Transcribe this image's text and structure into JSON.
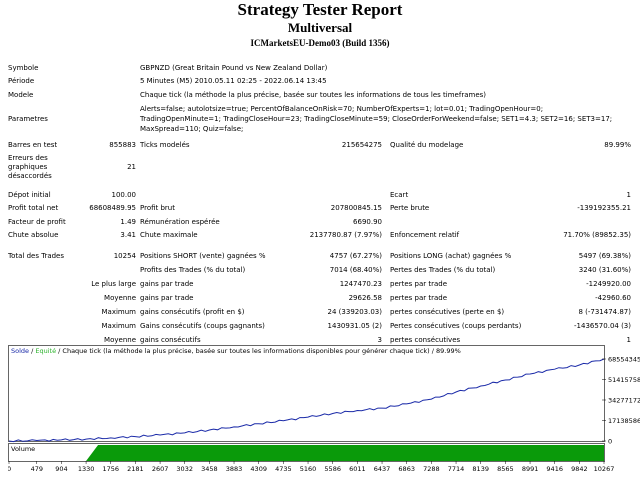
{
  "title": "Strategy Tester Report",
  "subtitle": "Multiversal",
  "server": "ICMarketsEU-Demo03 (Build 1356)",
  "info": {
    "symbol_label": "Symbole",
    "symbol_value": "GBPNZD (Great Britain Pound vs New Zealand Dollar)",
    "period_label": "Période",
    "period_value": "5 Minutes (M5) 2010.05.11 02:25 - 2022.06.14 13:45",
    "model_label": "Modele",
    "model_value": "Chaque tick (la méthode la plus précise, basée sur toutes les informations de tous les timeframes)",
    "params_label": "Parametres",
    "params_line1": "Alerts=false; autolotsize=true; PercentOfBalanceOnRisk=70; NumberOfExperts=1; lot=0.01; TradingOpenHour=0;",
    "params_line2": "TradingOpenMinute=1; TradingCloseHour=23; TradingCloseMinute=59; CloseOrderForWeekend=false; SET1=4.3; SET2=16; SET3=17;",
    "params_line3": "MaxSpread=110; Quiz=false;"
  },
  "stats": {
    "bars_label": "Barres en test",
    "bars_value": "855883",
    "ticks_label": "Ticks modelés",
    "ticks_value": "215654275",
    "quality_label": "Qualité du modelage",
    "quality_value": "89.99%",
    "errors_label_1": "Erreurs des",
    "errors_label_2": "graphiques",
    "errors_label_3": "désaccordés",
    "errors_value": "21",
    "deposit_label": "Dépot initial",
    "deposit_value": "100.00",
    "spread_label": "Ecart",
    "spread_value": "1",
    "net_label": "Profit total net",
    "net_value": "68608489.95",
    "gross_profit_label": "Profit brut",
    "gross_profit_value": "207800845.15",
    "gross_loss_label": "Perte brute",
    "gross_loss_value": "-139192355.21",
    "pf_label": "Facteur de profit",
    "pf_value": "1.49",
    "expected_label": "Rémunération espérée",
    "expected_value": "6690.90",
    "abs_dd_label": "Chute absolue",
    "abs_dd_value": "3.41",
    "max_dd_label": "Chute maximale",
    "max_dd_value": "2137780.87 (7.97%)",
    "rel_dd_label": "Enfoncement relatif",
    "rel_dd_value": "71.70% (89852.35)",
    "trades_label": "Total des Trades",
    "trades_value": "10254",
    "short_label": "Positions SHORT (vente) gagnées %",
    "short_value": "4757 (67.27%)",
    "long_label": "Positions LONG (achat) gagnées %",
    "long_value": "5497 (69.38%)",
    "profit_trades_label": "Profits des Trades (% du total)",
    "profit_trades_value": "7014 (68.40%)",
    "loss_trades_label": "Pertes des Trades (% du total)",
    "loss_trades_value": "3240 (31.60%)",
    "largest_label": "Le plus large",
    "largest_profit_label": "gains par trade",
    "largest_profit_value": "1247470.23",
    "largest_loss_label": "pertes par trade",
    "largest_loss_value": "-1249920.00",
    "average_label": "Moyenne",
    "avg_profit_label": "gains par trade",
    "avg_profit_value": "29626.58",
    "avg_loss_label": "pertes par trade",
    "avg_loss_value": "-42960.60",
    "maximum_label": "Maximum",
    "max_cons_wins_label": "gains consécutifs (profit en $)",
    "max_cons_wins_value": "24 (339203.03)",
    "max_cons_losses_label": "pertes consécutives (perte en $)",
    "max_cons_losses_value": "8 (-731474.87)",
    "maximum2_label": "Maximum",
    "max_cons_profit_label": "Gains consécutifs (coups gagnants)",
    "max_cons_profit_value": "1430931.05 (2)",
    "max_cons_loss_label": "Pertes consécutives (coups perdants)",
    "max_cons_loss_value": "-1436570.04 (3)",
    "average2_label": "Moyenne",
    "avg_cons_wins_label": "gains consécutifs",
    "avg_cons_wins_value": "3",
    "avg_cons_losses_label": "pertes consécutives",
    "avg_cons_losses_value": "1"
  },
  "chart_data": {
    "type": "line",
    "legend_solde": "Solde",
    "legend_sep": " / ",
    "legend_equity": "Equité",
    "legend_rest": " / Chaque tick (la méthode la plus précise, basée sur toutes les informations disponibles pour générer chaque tick) / 89.99%",
    "x_ticks": [
      "0",
      "479",
      "904",
      "1330",
      "1756",
      "2181",
      "2607",
      "3032",
      "3458",
      "3883",
      "4309",
      "4735",
      "5160",
      "5586",
      "6011",
      "6437",
      "6863",
      "7288",
      "7714",
      "8139",
      "8565",
      "8991",
      "9416",
      "9842",
      "10267"
    ],
    "y_ticks": [
      "68554345",
      "51415758",
      "34277172",
      "17138586",
      "0"
    ],
    "ylim": [
      0,
      68554345
    ],
    "xlim": [
      0,
      10267
    ],
    "volume_label": "Volume",
    "colors": {
      "balance": "#1a2aa8",
      "equity": "#2db32d",
      "volume": "#0a9a0a"
    },
    "series": [
      {
        "name": "Solde",
        "x": [
          0,
          479,
          904,
          1330,
          1756,
          2181,
          2607,
          3032,
          3458,
          3883,
          4309,
          4735,
          5160,
          5586,
          6011,
          6437,
          6863,
          7288,
          7714,
          8139,
          8565,
          8991,
          9416,
          9842,
          10267
        ],
        "values": [
          0,
          400000,
          900000,
          1600000,
          2600000,
          3700000,
          5000000,
          6800000,
          9200000,
          11800000,
          14400000,
          17000000,
          20000000,
          23000000,
          25500000,
          27500000,
          31000000,
          35000000,
          41000000,
          46000000,
          51000000,
          56000000,
          60000000,
          63500000,
          68554345
        ]
      }
    ],
    "volume_start_x": 1330
  }
}
